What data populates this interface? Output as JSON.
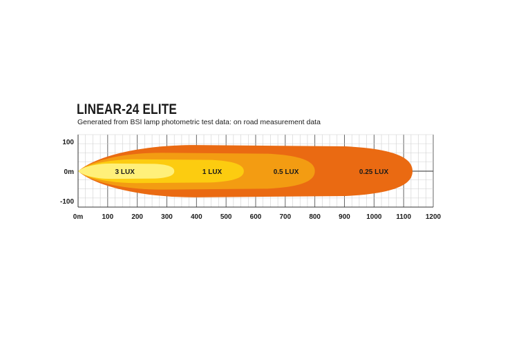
{
  "chart_data": {
    "type": "area",
    "title": "LINEAR-24 ELITE",
    "subtitle": "Generated from BSI lamp photometric test data: on road measurement data",
    "xlabel": "",
    "ylabel": "",
    "xlim": [
      0,
      1200
    ],
    "ylim": [
      -100,
      100
    ],
    "x_ticks": [
      {
        "value": 0,
        "label": "0m"
      },
      {
        "value": 100,
        "label": "100"
      },
      {
        "value": 200,
        "label": "200"
      },
      {
        "value": 300,
        "label": "300"
      },
      {
        "value": 400,
        "label": "400"
      },
      {
        "value": 500,
        "label": "500"
      },
      {
        "value": 600,
        "label": "600"
      },
      {
        "value": 700,
        "label": "700"
      },
      {
        "value": 800,
        "label": "800"
      },
      {
        "value": 900,
        "label": "900"
      },
      {
        "value": 1000,
        "label": "1000"
      },
      {
        "value": 1100,
        "label": "1100"
      },
      {
        "value": 1200,
        "label": "1200"
      }
    ],
    "y_ticks": [
      {
        "value": 100,
        "label": "100"
      },
      {
        "value": 0,
        "label": "0m"
      },
      {
        "value": -100,
        "label": "-100"
      }
    ],
    "grid": true,
    "series": [
      {
        "name": "0.25 LUX",
        "color": "#ea6a12",
        "reach": 1130,
        "half_width": 88,
        "label_x": 950
      },
      {
        "name": "0.5 LUX",
        "color": "#f39c12",
        "reach": 800,
        "half_width": 62,
        "label_x": 660
      },
      {
        "name": "1 LUX",
        "color": "#fccc10",
        "reach": 560,
        "half_width": 40,
        "label_x": 420
      },
      {
        "name": "3 LUX",
        "color": "#fff07a",
        "reach": 325,
        "half_width": 26,
        "label_x": 125
      }
    ]
  }
}
